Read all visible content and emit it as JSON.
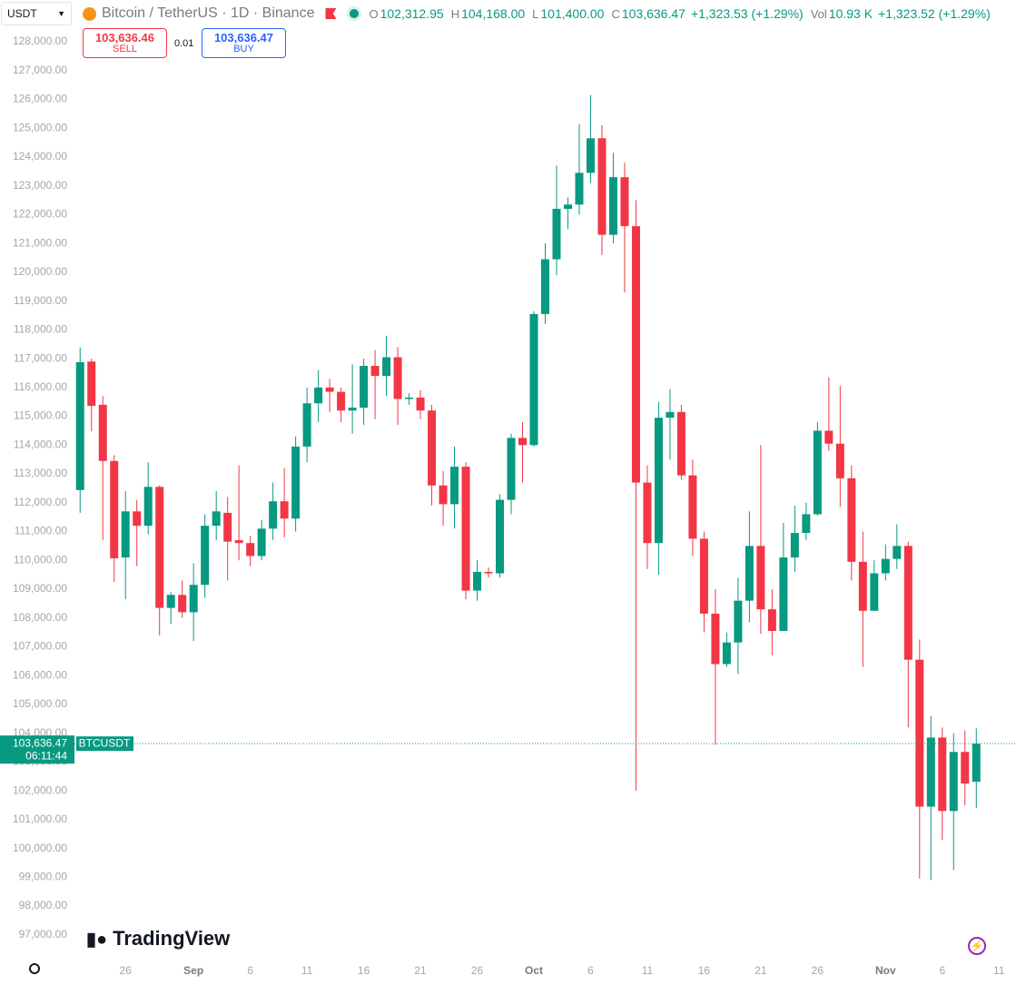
{
  "header": {
    "symbol_select": "USDT",
    "title": "Bitcoin / TetherUS · 1D · Binance",
    "ohlc": [
      {
        "label": "O",
        "value": "102,312.95"
      },
      {
        "label": "H",
        "value": "104,168.00"
      },
      {
        "label": "L",
        "value": "101,400.00"
      },
      {
        "label": "C",
        "value": "103,636.47"
      }
    ],
    "change": "+1,323.53 (+1.29%)",
    "volume_label": "Vol",
    "volume": "10.93 K",
    "volume_change": "+1,323.52 (+1.29%)"
  },
  "trade": {
    "sell_price": "103,636.46",
    "sell": "SELL",
    "spread": "0.01",
    "buy_price": "103,636.47",
    "buy": "BUY"
  },
  "price_label": {
    "price": "103,636.47",
    "countdown": "06:11:44",
    "symbol": "BTCUSDT"
  },
  "branding": "TradingView",
  "chart_data": {
    "type": "candlestick",
    "up_color": "#089981",
    "down_color": "#f23645",
    "open": [
      112440,
      116900,
      115400,
      113450,
      110100,
      111700,
      111200,
      112550,
      108350,
      108800,
      108200,
      109150,
      111200,
      111650,
      110700,
      110600,
      110150,
      111100,
      112050,
      111450,
      113950,
      115450,
      116000,
      115850,
      115200,
      115300,
      116750,
      116400,
      117050,
      115600,
      115650,
      115200,
      112600,
      111950,
      113250,
      108950,
      109600,
      109550,
      112100,
      114250,
      114000,
      118550,
      120450,
      122200,
      122350,
      123450,
      124650,
      121300,
      123300,
      121600,
      112700,
      110600,
      114950,
      115150,
      112950,
      110750,
      108150,
      106400,
      107150,
      108600,
      110500,
      108300,
      107550,
      110100,
      110950,
      111600,
      114500,
      114050,
      112850,
      109950,
      108250,
      109550,
      110050,
      110500,
      106550,
      101450,
      103850,
      101300,
      103350,
      102312.95
    ],
    "high": [
      117390,
      117000,
      115700,
      113650,
      112400,
      112100,
      113400,
      112600,
      108900,
      109300,
      109900,
      111600,
      112400,
      112200,
      113300,
      110850,
      111400,
      112700,
      113200,
      114300,
      116000,
      116600,
      116300,
      116000,
      116800,
      117000,
      117300,
      117800,
      117400,
      115800,
      115900,
      115400,
      113100,
      113950,
      113400,
      110000,
      109750,
      112300,
      114400,
      114800,
      118650,
      121000,
      123700,
      122600,
      125150,
      126150,
      125100,
      124150,
      123800,
      122500,
      113300,
      115500,
      115950,
      115400,
      113500,
      111000,
      109000,
      107500,
      109400,
      111700,
      114000,
      109000,
      111300,
      111900,
      112000,
      114800,
      116350,
      116050,
      113300,
      111000,
      110000,
      110550,
      111250,
      110650,
      107250,
      104600,
      104200,
      104000,
      104100,
      104168
    ],
    "low": [
      111650,
      114480,
      110700,
      109250,
      108650,
      109800,
      110900,
      107400,
      107800,
      108000,
      107200,
      108700,
      110700,
      109300,
      110000,
      109800,
      110000,
      110700,
      110800,
      111000,
      113400,
      114800,
      115150,
      114800,
      114400,
      114700,
      114900,
      115700,
      114700,
      115400,
      114900,
      111900,
      111200,
      111100,
      108650,
      108600,
      109400,
      109400,
      111600,
      112700,
      113950,
      118200,
      119900,
      121500,
      122000,
      123100,
      120600,
      121000,
      119300,
      102000,
      109700,
      109500,
      113500,
      112800,
      110150,
      107500,
      103600,
      106300,
      106050,
      107850,
      107450,
      106700,
      107550,
      109600,
      110700,
      111550,
      113800,
      111850,
      109300,
      106300,
      108250,
      109300,
      109700,
      104200,
      98950,
      98900,
      100300,
      99250,
      101500,
      101400
    ],
    "close": [
      116880,
      115360,
      113450,
      110070,
      111700,
      111200,
      112550,
      108350,
      108800,
      108200,
      109150,
      111200,
      111700,
      110650,
      110600,
      110150,
      111100,
      112050,
      111450,
      113950,
      115450,
      116000,
      115850,
      115200,
      115300,
      116750,
      116400,
      117050,
      115600,
      115650,
      115200,
      112600,
      111950,
      113250,
      108950,
      109600,
      109550,
      112100,
      114250,
      114000,
      118550,
      120450,
      122200,
      122350,
      123450,
      124650,
      121300,
      123300,
      121600,
      112700,
      110600,
      114950,
      115150,
      112950,
      110750,
      108150,
      106400,
      107150,
      108600,
      110500,
      108300,
      107550,
      110100,
      110950,
      111600,
      114500,
      114050,
      112850,
      109950,
      108250,
      109550,
      110050,
      110500,
      106550,
      101450,
      103850,
      101300,
      103350,
      102250,
      103636.47
    ],
    "ylim": [
      96300,
      129450
    ],
    "yticks": [
      {
        "value": 97000,
        "label": "97,000.00"
      },
      {
        "value": 98000,
        "label": "98,000.00"
      },
      {
        "value": 99000,
        "label": "99,000.00"
      },
      {
        "value": 100000,
        "label": "100,000.00"
      },
      {
        "value": 101000,
        "label": "101,000.00"
      },
      {
        "value": 102000,
        "label": "102,000.00"
      },
      {
        "value": 103000,
        "label": "103,000.00"
      },
      {
        "value": 104000,
        "label": "104,000.00"
      },
      {
        "value": 105000,
        "label": "105,000.00"
      },
      {
        "value": 106000,
        "label": "106,000.00"
      },
      {
        "value": 107000,
        "label": "107,000.00"
      },
      {
        "value": 108000,
        "label": "108,000.00"
      },
      {
        "value": 109000,
        "label": "109,000.00"
      },
      {
        "value": 110000,
        "label": "110,000.00"
      },
      {
        "value": 111000,
        "label": "111,000.00"
      },
      {
        "value": 112000,
        "label": "112,000.00"
      },
      {
        "value": 113000,
        "label": "113,000.00"
      },
      {
        "value": 114000,
        "label": "114,000.00"
      },
      {
        "value": 115000,
        "label": "115,000.00"
      },
      {
        "value": 116000,
        "label": "116,000.00"
      },
      {
        "value": 117000,
        "label": "117,000.00"
      },
      {
        "value": 118000,
        "label": "118,000.00"
      },
      {
        "value": 119000,
        "label": "119,000.00"
      },
      {
        "value": 120000,
        "label": "120,000.00"
      },
      {
        "value": 121000,
        "label": "121,000.00"
      },
      {
        "value": 122000,
        "label": "122,000.00"
      },
      {
        "value": 123000,
        "label": "123,000.00"
      },
      {
        "value": 124000,
        "label": "124,000.00"
      },
      {
        "value": 125000,
        "label": "125,000.00"
      },
      {
        "value": 126000,
        "label": "126,000.00"
      },
      {
        "value": 127000,
        "label": "127,000.00"
      },
      {
        "value": 128000,
        "label": "128,000.00"
      }
    ],
    "xlim": [
      -0.5,
      82.5
    ],
    "xticks": [
      {
        "value": 4,
        "label": "26"
      },
      {
        "value": 10,
        "label": "Sep"
      },
      {
        "value": 15,
        "label": "6"
      },
      {
        "value": 20,
        "label": "11"
      },
      {
        "value": 25,
        "label": "16"
      },
      {
        "value": 30,
        "label": "21"
      },
      {
        "value": 35,
        "label": "26"
      },
      {
        "value": 40,
        "label": "Oct"
      },
      {
        "value": 45,
        "label": "6"
      },
      {
        "value": 50,
        "label": "11"
      },
      {
        "value": 55,
        "label": "16"
      },
      {
        "value": 60,
        "label": "21"
      },
      {
        "value": 65,
        "label": "26"
      },
      {
        "value": 71,
        "label": "Nov"
      },
      {
        "value": 76,
        "label": "6"
      },
      {
        "value": 81,
        "label": "11"
      }
    ]
  }
}
